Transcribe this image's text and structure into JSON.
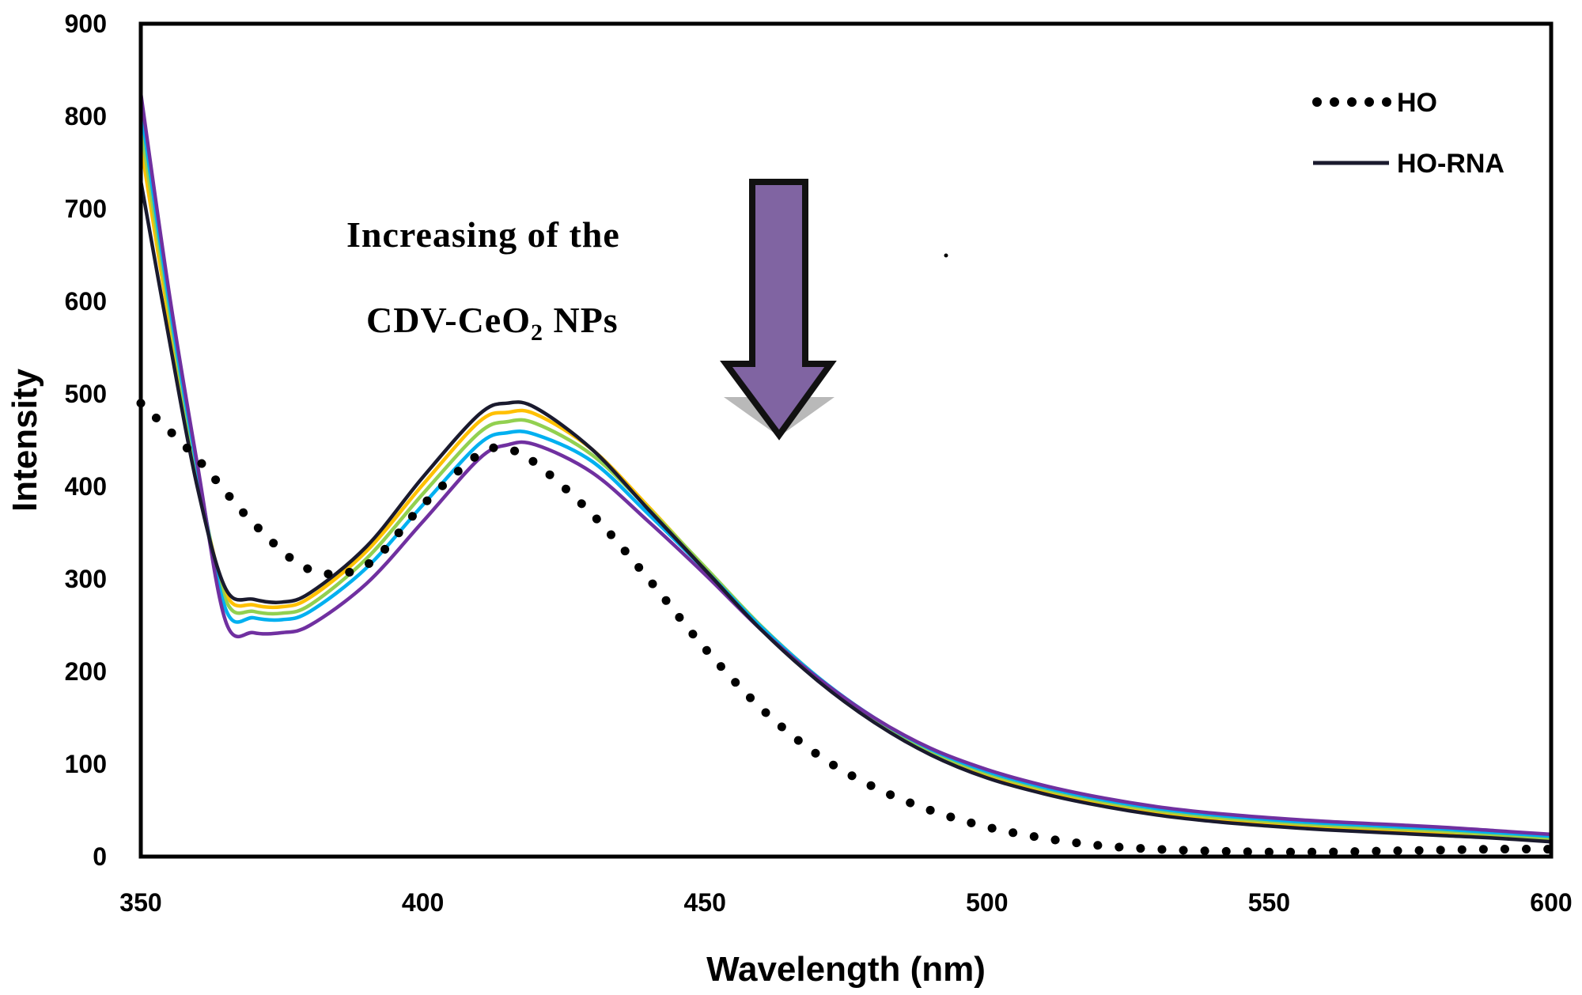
{
  "chart_data": {
    "type": "line",
    "title": "",
    "xlabel": "Wavelength (nm)",
    "ylabel": "Intensity",
    "xlim": [
      350,
      600
    ],
    "ylim": [
      0,
      900
    ],
    "xticks": [
      350,
      400,
      450,
      500,
      550,
      600
    ],
    "yticks": [
      0,
      100,
      200,
      300,
      400,
      500,
      600,
      700,
      800,
      900
    ],
    "grid": false,
    "legend_position": "top-right",
    "legend": [
      {
        "label": "HO",
        "style": "dotted",
        "color": "#000000"
      },
      {
        "label": "HO-RNA",
        "style": "solid",
        "color": "#1a1a2e"
      }
    ],
    "annotation": {
      "line1": "Increasing of the",
      "line2_prefix": "CDV-CeO",
      "line2_sub": "2",
      "line2_suffix": " NPs",
      "arrow_color": "#8064a2"
    },
    "series": [
      {
        "name": "HO",
        "style": "dotted",
        "color": "#000000",
        "x": [
          350,
          360,
          370,
          380,
          390,
          400,
          410,
          415,
          420,
          430,
          440,
          450,
          460,
          470,
          480,
          490,
          500,
          510,
          520,
          530,
          540,
          550,
          560,
          570,
          580,
          590,
          600
        ],
        "y": [
          490,
          430,
          360,
          310,
          315,
          380,
          435,
          440,
          425,
          370,
          300,
          225,
          160,
          110,
          75,
          50,
          32,
          20,
          12,
          8,
          6,
          5,
          5,
          6,
          7,
          8,
          8
        ]
      },
      {
        "name": "HO-RNA",
        "style": "solid",
        "color": "#1a1a2e",
        "x": [
          350,
          355,
          360,
          365,
          370,
          375,
          380,
          390,
          400,
          410,
          415,
          420,
          430,
          440,
          450,
          460,
          470,
          480,
          490,
          500,
          510,
          520,
          530,
          540,
          550,
          560,
          570,
          580,
          590,
          600
        ],
        "y": [
          730,
          560,
          400,
          290,
          278,
          275,
          285,
          335,
          410,
          478,
          490,
          485,
          440,
          375,
          310,
          245,
          190,
          145,
          110,
          85,
          68,
          55,
          45,
          38,
          33,
          29,
          26,
          23,
          20,
          16
        ]
      },
      {
        "style": "solid",
        "color": "#ffc000",
        "x": [
          350,
          355,
          360,
          365,
          370,
          375,
          380,
          390,
          400,
          410,
          415,
          420,
          430,
          440,
          450,
          460,
          470,
          480,
          490,
          500,
          510,
          520,
          530,
          540,
          550,
          560,
          570,
          580,
          590,
          600
        ],
        "y": [
          770,
          580,
          410,
          285,
          272,
          270,
          280,
          330,
          402,
          470,
          480,
          478,
          440,
          378,
          312,
          247,
          192,
          147,
          112,
          88,
          71,
          58,
          48,
          41,
          36,
          32,
          29,
          26,
          22,
          18
        ]
      },
      {
        "style": "solid",
        "color": "#92d050",
        "x": [
          350,
          355,
          360,
          365,
          370,
          375,
          380,
          390,
          400,
          410,
          415,
          420,
          430,
          440,
          450,
          460,
          470,
          480,
          490,
          500,
          510,
          520,
          530,
          540,
          550,
          560,
          570,
          580,
          590,
          600
        ],
        "y": [
          790,
          590,
          415,
          278,
          265,
          263,
          272,
          322,
          392,
          458,
          470,
          468,
          434,
          376,
          313,
          249,
          194,
          149,
          114,
          90,
          73,
          60,
          50,
          43,
          38,
          34,
          31,
          28,
          24,
          20
        ]
      },
      {
        "style": "solid",
        "color": "#00b0f0",
        "x": [
          350,
          355,
          360,
          365,
          370,
          375,
          380,
          390,
          400,
          410,
          415,
          420,
          430,
          440,
          450,
          460,
          470,
          480,
          490,
          500,
          510,
          520,
          530,
          540,
          550,
          560,
          570,
          580,
          590,
          600
        ],
        "y": [
          810,
          600,
          420,
          268,
          258,
          256,
          265,
          312,
          380,
          446,
          458,
          456,
          427,
          370,
          310,
          248,
          194,
          150,
          116,
          92,
          75,
          62,
          52,
          45,
          40,
          36,
          33,
          30,
          26,
          22
        ]
      },
      {
        "style": "solid",
        "color": "#7030a0",
        "x": [
          350,
          355,
          360,
          365,
          370,
          375,
          380,
          390,
          400,
          410,
          415,
          420,
          430,
          440,
          450,
          460,
          470,
          480,
          490,
          500,
          510,
          520,
          530,
          540,
          550,
          560,
          570,
          580,
          590,
          600
        ],
        "y": [
          825,
          610,
          425,
          255,
          242,
          242,
          250,
          295,
          362,
          430,
          445,
          445,
          415,
          362,
          305,
          245,
          193,
          150,
          117,
          94,
          77,
          64,
          54,
          47,
          42,
          38,
          35,
          32,
          28,
          24
        ]
      }
    ]
  }
}
